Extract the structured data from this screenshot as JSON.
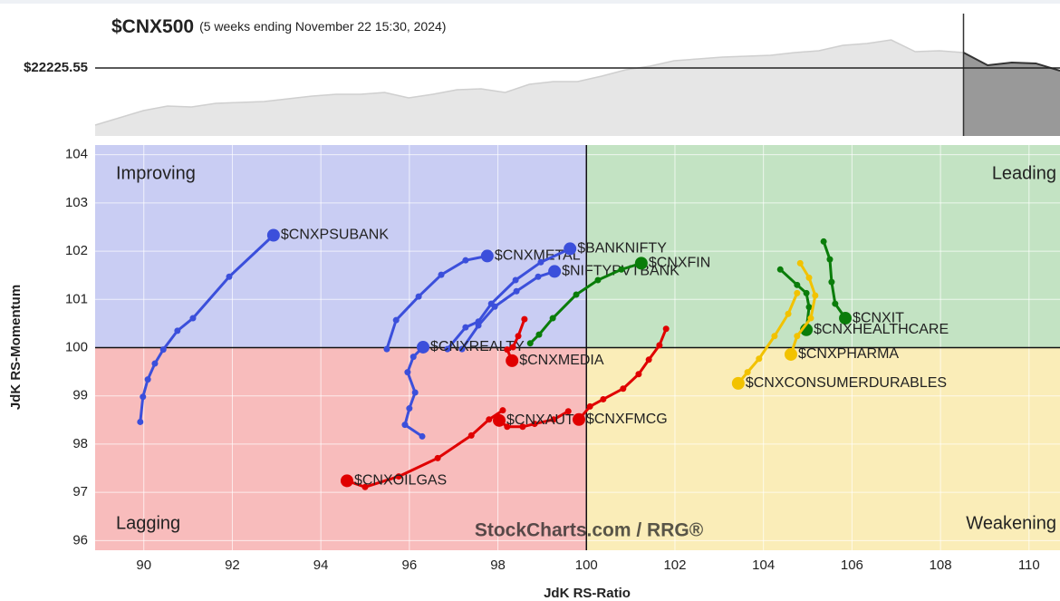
{
  "chart_data": [
    {
      "type": "area",
      "title": "$CNX500",
      "subtitle": "(5 weeks ending November 22 15:30, 2024)",
      "reference": {
        "value": 22225.55,
        "label": "$22225.55"
      },
      "ylim": [
        21225,
        23025
      ],
      "series": [
        {
          "name": "history",
          "color": "#e6e6e6",
          "values": [
            21385,
            21492,
            21598,
            21665,
            21652,
            21705,
            21718,
            21732,
            21772,
            21812,
            21838,
            21838,
            21865,
            21785,
            21838,
            21905,
            21918,
            21865,
            21985,
            22025,
            22025,
            22105,
            22198,
            22252,
            22332,
            22358,
            22385,
            22398,
            22412,
            22452,
            22478,
            22558,
            22585,
            22638,
            22465,
            22478,
            22452
          ]
        },
        {
          "name": "current",
          "color": "#999999",
          "values": [
            22265,
            22305,
            22292,
            22185
          ]
        }
      ]
    },
    {
      "type": "rrg",
      "xlabel": "JdK RS-Ratio",
      "ylabel": "JdK RS-Momentum",
      "xlim": [
        88.9,
        110.7
      ],
      "ylim": [
        95.8,
        104.2
      ],
      "xticks": [
        90,
        92,
        94,
        96,
        98,
        100,
        102,
        104,
        106,
        108,
        110
      ],
      "yticks": [
        96,
        97,
        98,
        99,
        100,
        101,
        102,
        103,
        104
      ],
      "center": [
        100,
        100
      ],
      "grid": true,
      "quadrants": [
        {
          "name": "Improving",
          "color": "#3b4fdb",
          "fill": "#c9cdf3"
        },
        {
          "name": "Leading",
          "color": "#0a7d0a",
          "fill": "#c3e3c3"
        },
        {
          "name": "Lagging",
          "color": "#e00000",
          "fill": "#f8bcbc"
        },
        {
          "name": "Weakening",
          "color": "#f2c200",
          "fill": "#faedb8"
        }
      ],
      "watermark": "StockCharts.com / RRG®",
      "series": [
        {
          "name": "$CNXPSUBANK",
          "color": "#3b4fdb",
          "x": [
            89.92,
            89.98,
            90.09,
            90.25,
            90.44,
            90.76,
            91.11,
            91.93,
            92.93
          ],
          "values": [
            98.46,
            98.98,
            99.34,
            99.67,
            99.96,
            100.35,
            100.61,
            101.47,
            102.33
          ]
        },
        {
          "name": "$CNXMETAL",
          "color": "#3b4fdb",
          "x": [
            95.49,
            95.7,
            96.21,
            96.72,
            97.27,
            97.76
          ],
          "values": [
            99.97,
            100.57,
            101.06,
            101.51,
            101.81,
            101.9
          ]
        },
        {
          "name": "$BANKNIFTY",
          "color": "#3b4fdb",
          "x": [
            96.86,
            97.27,
            97.56,
            97.85,
            98.4,
            98.97,
            99.63
          ],
          "values": [
            99.97,
            100.42,
            100.54,
            100.91,
            101.4,
            101.77,
            102.05
          ]
        },
        {
          "name": "$NIFTYPVTBANK",
          "color": "#3b4fdb",
          "x": [
            97.19,
            97.56,
            97.93,
            98.42,
            98.91,
            99.28
          ],
          "values": [
            99.97,
            100.46,
            100.85,
            101.17,
            101.47,
            101.58
          ]
        },
        {
          "name": "$CNXREALTY",
          "color": "#3b4fdb",
          "x": [
            96.29,
            95.9,
            96.0,
            96.13,
            95.96,
            96.09,
            96.31
          ],
          "values": [
            98.16,
            98.4,
            98.74,
            99.07,
            99.49,
            99.81,
            100.01
          ]
        },
        {
          "name": "$CNXMEDIA",
          "color": "#e00000",
          "x": [
            98.6,
            98.46,
            98.34,
            98.21,
            98.32
          ],
          "values": [
            100.59,
            100.24,
            100.01,
            99.96,
            99.73
          ]
        },
        {
          "name": "$CNXAUTO",
          "color": "#e00000",
          "x": [
            99.59,
            99.26,
            98.83,
            98.56,
            98.21,
            98.03
          ],
          "values": [
            98.68,
            98.51,
            98.42,
            98.36,
            98.36,
            98.49
          ]
        },
        {
          "name": "$CNXFMCG",
          "color": "#e00000",
          "x": [
            101.8,
            101.65,
            101.41,
            101.18,
            100.83,
            100.38,
            100.08,
            99.83
          ],
          "values": [
            100.39,
            100.05,
            99.75,
            99.45,
            99.15,
            98.93,
            98.78,
            98.51
          ]
        },
        {
          "name": "$CNXOILGAS",
          "color": "#e00000",
          "x": [
            98.11,
            97.8,
            97.4,
            96.64,
            95.76,
            95.0,
            94.59
          ],
          "values": [
            98.7,
            98.51,
            98.18,
            97.71,
            97.33,
            97.11,
            97.24
          ]
        },
        {
          "name": "$CNXFIN",
          "color": "#0a7d0a",
          "x": [
            98.73,
            98.93,
            99.24,
            99.77,
            100.26,
            100.79,
            101.24
          ],
          "values": [
            100.09,
            100.27,
            100.61,
            101.1,
            101.4,
            101.62,
            101.75
          ]
        },
        {
          "name": "$CNXIT",
          "color": "#0a7d0a",
          "x": [
            105.36,
            105.5,
            105.54,
            105.62,
            105.85
          ],
          "values": [
            102.2,
            101.83,
            101.36,
            100.91,
            100.61
          ]
        },
        {
          "name": "$CNXHEALTHCARE",
          "color": "#0a7d0a",
          "x": [
            104.38,
            104.76,
            104.97,
            105.03,
            104.97
          ],
          "values": [
            101.62,
            101.3,
            101.13,
            100.84,
            100.37
          ]
        },
        {
          "name": "$CNXPHARMA",
          "color": "#f2c200",
          "x": [
            104.83,
            105.03,
            105.17,
            105.07,
            104.76,
            104.62
          ],
          "values": [
            101.75,
            101.45,
            101.08,
            100.61,
            100.24,
            99.86
          ]
        },
        {
          "name": "$CNXCONSUMERDURABLES",
          "color": "#f2c200",
          "x": [
            104.76,
            104.56,
            104.25,
            103.9,
            103.64,
            103.43
          ],
          "values": [
            101.13,
            100.7,
            100.24,
            99.77,
            99.49,
            99.26
          ]
        }
      ]
    }
  ]
}
